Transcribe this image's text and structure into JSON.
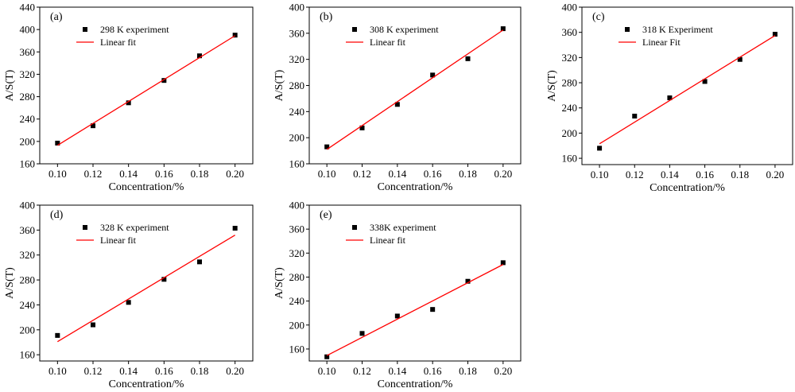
{
  "figure": {
    "background": "#ffffff",
    "point_color": "#000000",
    "fit_color": "#ff0000"
  },
  "chart_data": [
    {
      "type": "scatter",
      "panel_label": "(a)",
      "xlabel": "Concentration/%",
      "ylabel": "A/S(T)",
      "xlim": [
        0.09,
        0.21
      ],
      "ylim": [
        160,
        440
      ],
      "xticks": [
        "0.10",
        "0.12",
        "0.14",
        "0.16",
        "0.18",
        "0.20"
      ],
      "yticks": [
        "160",
        "200",
        "240",
        "280",
        "320",
        "360",
        "400",
        "440"
      ],
      "legend": {
        "placement": "top-left"
      },
      "series": [
        {
          "name": "298 K experiment",
          "kind": "points",
          "marker": "square",
          "x": [
            0.1,
            0.12,
            0.14,
            0.16,
            0.18,
            0.2
          ],
          "y": [
            197,
            228,
            269,
            309,
            353,
            390
          ]
        },
        {
          "name": "Linear fit",
          "kind": "line",
          "x": [
            0.1,
            0.2
          ],
          "y": [
            193,
            389
          ]
        }
      ]
    },
    {
      "type": "scatter",
      "panel_label": "(b)",
      "xlabel": "Concentration/%",
      "ylabel": "A/S(T)",
      "xlim": [
        0.09,
        0.21
      ],
      "ylim": [
        160,
        400
      ],
      "xticks": [
        "0.10",
        "0.12",
        "0.14",
        "0.16",
        "0.18",
        "0.20"
      ],
      "yticks": [
        "160",
        "200",
        "240",
        "280",
        "320",
        "360",
        "400"
      ],
      "legend": {
        "placement": "top-left"
      },
      "series": [
        {
          "name": "308 K experiment",
          "kind": "points",
          "marker": "square",
          "x": [
            0.1,
            0.12,
            0.14,
            0.16,
            0.18,
            0.2
          ],
          "y": [
            186,
            215,
            251,
            296,
            321,
            367
          ]
        },
        {
          "name": "Linear fit",
          "kind": "line",
          "x": [
            0.1,
            0.2
          ],
          "y": [
            182,
            365
          ]
        }
      ]
    },
    {
      "type": "scatter",
      "panel_label": "(c)",
      "xlabel": "Concentration/%",
      "ylabel": "A/S(T)",
      "xlim": [
        0.09,
        0.21
      ],
      "ylim": [
        150,
        400
      ],
      "xticks": [
        "0.10",
        "0.12",
        "0.14",
        "0.16",
        "0.18",
        "0.20"
      ],
      "yticks": [
        "160",
        "200",
        "240",
        "280",
        "320",
        "360",
        "400"
      ],
      "legend": {
        "placement": "top-left"
      },
      "series": [
        {
          "name": "318 K Experiment",
          "kind": "points",
          "marker": "square",
          "x": [
            0.1,
            0.12,
            0.14,
            0.16,
            0.18,
            0.2
          ],
          "y": [
            176,
            227,
            256,
            282,
            317,
            357
          ]
        },
        {
          "name": "Linear Fit",
          "kind": "line",
          "x": [
            0.1,
            0.2
          ],
          "y": [
            183,
            355
          ]
        }
      ]
    },
    {
      "type": "scatter",
      "panel_label": "(d)",
      "xlabel": "Concentration/%",
      "ylabel": "A/S(T)",
      "xlim": [
        0.09,
        0.21
      ],
      "ylim": [
        150,
        400
      ],
      "xticks": [
        "0.10",
        "0.12",
        "0.14",
        "0.16",
        "0.18",
        "0.20"
      ],
      "yticks": [
        "160",
        "200",
        "240",
        "280",
        "320",
        "360",
        "400"
      ],
      "legend": {
        "placement": "top-left"
      },
      "series": [
        {
          "name": "328 K experiment",
          "kind": "points",
          "marker": "square",
          "x": [
            0.1,
            0.12,
            0.14,
            0.16,
            0.18,
            0.2
          ],
          "y": [
            191,
            208,
            244,
            281,
            309,
            363
          ]
        },
        {
          "name": "Linear fit",
          "kind": "line",
          "x": [
            0.1,
            0.2
          ],
          "y": [
            181,
            352
          ]
        }
      ]
    },
    {
      "type": "scatter",
      "panel_label": "(e)",
      "xlabel": "Concentration/%",
      "ylabel": "A/S(T)",
      "xlim": [
        0.09,
        0.21
      ],
      "ylim": [
        140,
        400
      ],
      "xticks": [
        "0.10",
        "0.12",
        "0.14",
        "0.16",
        "0.18",
        "0.20"
      ],
      "yticks": [
        "160",
        "200",
        "240",
        "280",
        "320",
        "360",
        "400"
      ],
      "legend": {
        "placement": "top-left"
      },
      "series": [
        {
          "name": "338K experiment",
          "kind": "points",
          "marker": "square",
          "x": [
            0.1,
            0.12,
            0.14,
            0.16,
            0.18,
            0.2
          ],
          "y": [
            147,
            186,
            215,
            226,
            273,
            304
          ]
        },
        {
          "name": "Linear fit",
          "kind": "line",
          "x": [
            0.1,
            0.2
          ],
          "y": [
            149,
            301
          ]
        }
      ]
    }
  ]
}
